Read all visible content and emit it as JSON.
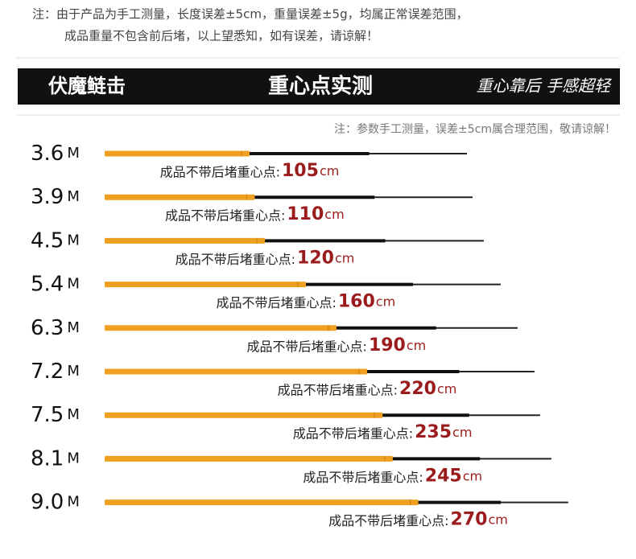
{
  "notes": {
    "line1": "注：由于产品为手工测量，长度误差±5cm，重量误差±5g，均属正常误差范围，",
    "line2": "成品重量不包含前后堵，以上望悉知，如有误差，请谅解！"
  },
  "banner": {
    "left": "伏魔鲢击",
    "center": "重心点实测",
    "right": "重心靠后 手感超轻"
  },
  "sub_note": "注：参数手工测量，误差±5cm属合理范围，敬请谅解！",
  "length_unit": "M",
  "cg_label": "成品不带后堵重心点:",
  "cg_unit": "cm",
  "rows": [
    {
      "length": "3.6",
      "cg": 105
    },
    {
      "length": "3.9",
      "cg": 110
    },
    {
      "length": "4.5",
      "cg": 120
    },
    {
      "length": "5.4",
      "cg": 160
    },
    {
      "length": "6.3",
      "cg": 190
    },
    {
      "length": "7.2",
      "cg": 220
    },
    {
      "length": "7.5",
      "cg": 235
    },
    {
      "length": "8.1",
      "cg": 245
    },
    {
      "length": "9.0",
      "cg": 270
    }
  ]
}
